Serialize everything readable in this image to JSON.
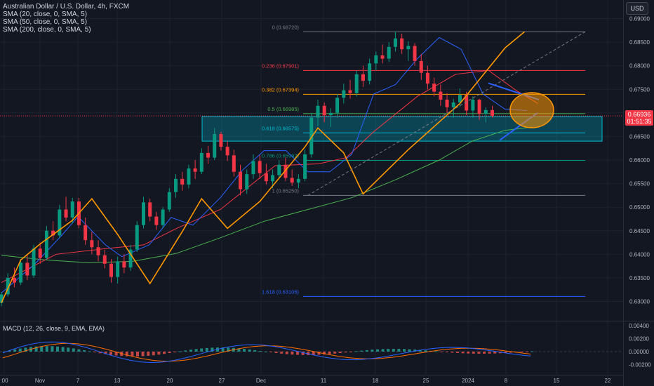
{
  "header": {
    "symbol_title": "Australian Dollar / U.S. Dollar, 4h, FXCM",
    "indicators": [
      "SMA (20, close, 0, SMA, 5)",
      "SMA (50, close, 0, SMA, 5)",
      "SMA (200, close, 0, SMA, 5)"
    ],
    "currency_button": "USD"
  },
  "macd_panel": {
    "label": "MACD (12, 26, close, 9, EMA, EMA)",
    "y_ticks": [
      "0.00400",
      "0.00200",
      "0.00000",
      "-0.00200"
    ],
    "y_values": [
      0.004,
      0.002,
      0.0,
      -0.002
    ]
  },
  "price_badge": {
    "price": "0.66936",
    "countdown": "01:51:35",
    "color": "#f23645"
  },
  "colors": {
    "background": "#131722",
    "sma20": "#2962ff",
    "sma50": "#f23645",
    "sma200": "#4caf50",
    "zigzag": "#ff9800",
    "zone_fill": "#00bcd4",
    "macd_line": "#2962ff",
    "signal_line": "#ff6d00"
  },
  "fib_levels": [
    {
      "label": "0 (0.68720)",
      "value": 0.6872,
      "color": "#787b86"
    },
    {
      "label": "0.236 (0.67901)",
      "value": 0.67901,
      "color": "#f23645"
    },
    {
      "label": "0.382 (0.67394)",
      "value": 0.67394,
      "color": "#ff9800"
    },
    {
      "label": "0.5 (0.66985)",
      "value": 0.66985,
      "color": "#4caf50"
    },
    {
      "label": "0.618 (0.66575)",
      "value": 0.66575,
      "color": "#00bcd4"
    },
    {
      "label": "0.786 (0.65992)",
      "value": 0.65992,
      "color": "#089981"
    },
    {
      "label": "1 (0.65250)",
      "value": 0.6525,
      "color": "#787b86"
    },
    {
      "label": "1.618 (0.63106)",
      "value": 0.63106,
      "color": "#2962ff"
    }
  ],
  "chart_data": {
    "type": "candlestick",
    "title": "Australian Dollar / U.S. Dollar, 4h, FXCM",
    "x_ticks": [
      ":00",
      "Nov",
      "7",
      "13",
      "20",
      "27",
      "Dec",
      "11",
      "18",
      "25",
      "2024",
      "8",
      "15",
      "22"
    ],
    "y_ticks": [
      "0.63000",
      "0.63500",
      "0.64000",
      "0.64500",
      "0.65000",
      "0.65500",
      "0.66000",
      "0.66500",
      "0.67000",
      "0.67500",
      "0.68000",
      "0.68500",
      "0.69000"
    ],
    "y_values": [
      0.63,
      0.635,
      0.64,
      0.645,
      0.65,
      0.655,
      0.66,
      0.665,
      0.67,
      0.675,
      0.68,
      0.685,
      0.69
    ],
    "ylim": [
      0.6275,
      0.6915
    ],
    "last_price": 0.66936,
    "zigzag": [
      [
        0,
        0.6297
      ],
      [
        3,
        0.6388
      ],
      [
        6,
        0.6422
      ],
      [
        11,
        0.6472
      ],
      [
        14,
        0.6518
      ],
      [
        18,
        0.6442
      ],
      [
        23,
        0.6338
      ],
      [
        28,
        0.6448
      ],
      [
        31,
        0.6518
      ],
      [
        35,
        0.6455
      ],
      [
        40,
        0.6512
      ],
      [
        47,
        0.6628
      ],
      [
        49,
        0.6668
      ],
      [
        53,
        0.6615
      ],
      [
        56,
        0.6528
      ],
      [
        63,
        0.6622
      ],
      [
        71,
        0.672
      ],
      [
        78,
        0.6838
      ],
      [
        81,
        0.6872
      ]
    ],
    "sma20": [
      [
        0,
        0.6318
      ],
      [
        6,
        0.6378
      ],
      [
        11,
        0.644
      ],
      [
        14,
        0.648
      ],
      [
        19,
        0.642
      ],
      [
        22,
        0.6395
      ],
      [
        27,
        0.642
      ],
      [
        31,
        0.6478
      ],
      [
        35,
        0.6462
      ],
      [
        40,
        0.652
      ],
      [
        44,
        0.6578
      ],
      [
        48,
        0.662
      ],
      [
        52,
        0.662
      ],
      [
        56,
        0.6575
      ],
      [
        60,
        0.6575
      ],
      [
        64,
        0.6612
      ],
      [
        68,
        0.674
      ],
      [
        72,
        0.676
      ],
      [
        76,
        0.6815
      ],
      [
        80,
        0.686
      ],
      [
        84,
        0.6835
      ],
      [
        88,
        0.674
      ],
      [
        92,
        0.6708
      ],
      [
        96,
        0.6705
      ]
    ],
    "sma50": [
      [
        0,
        0.634
      ],
      [
        10,
        0.64
      ],
      [
        19,
        0.6412
      ],
      [
        26,
        0.642
      ],
      [
        32,
        0.6455
      ],
      [
        40,
        0.6495
      ],
      [
        50,
        0.6588
      ],
      [
        58,
        0.6592
      ],
      [
        63,
        0.6605
      ],
      [
        68,
        0.666
      ],
      [
        76,
        0.6735
      ],
      [
        83,
        0.6782
      ],
      [
        89,
        0.679
      ],
      [
        94,
        0.6748
      ],
      [
        98,
        0.672
      ]
    ],
    "sma200": [
      [
        0,
        0.6398
      ],
      [
        8,
        0.6388
      ],
      [
        16,
        0.6382
      ],
      [
        24,
        0.6385
      ],
      [
        32,
        0.6402
      ],
      [
        40,
        0.6435
      ],
      [
        48,
        0.647
      ],
      [
        56,
        0.6495
      ],
      [
        64,
        0.652
      ],
      [
        72,
        0.6558
      ],
      [
        80,
        0.66
      ],
      [
        86,
        0.664
      ],
      [
        92,
        0.6663
      ],
      [
        97,
        0.667
      ]
    ],
    "zone": {
      "low": 0.664,
      "high": 0.6692
    },
    "triangle_upper": [
      [
        88,
        0.6763
      ],
      [
        95,
        0.6728
      ]
    ],
    "triangle_lower": [
      [
        89,
        0.6642
      ],
      [
        96,
        0.67
      ]
    ],
    "ray": [
      [
        56,
        0.6525
      ],
      [
        104,
        0.6872
      ]
    ],
    "circle_center": [
      95,
      0.67
    ],
    "candles": [
      [
        0.6297,
        0.632,
        0.629,
        0.6315
      ],
      [
        0.6315,
        0.636,
        0.631,
        0.635
      ],
      [
        0.635,
        0.6372,
        0.633,
        0.634
      ],
      [
        0.634,
        0.639,
        0.6335,
        0.6382
      ],
      [
        0.6382,
        0.6398,
        0.6345,
        0.6355
      ],
      [
        0.6355,
        0.642,
        0.635,
        0.6412
      ],
      [
        0.6412,
        0.6425,
        0.638,
        0.6392
      ],
      [
        0.6392,
        0.646,
        0.6388,
        0.645
      ],
      [
        0.645,
        0.647,
        0.643,
        0.644
      ],
      [
        0.644,
        0.6505,
        0.6435,
        0.6495
      ],
      [
        0.6495,
        0.6522,
        0.647,
        0.6478
      ],
      [
        0.6478,
        0.652,
        0.6465,
        0.6512
      ],
      [
        0.6512,
        0.652,
        0.6455,
        0.6462
      ],
      [
        0.6462,
        0.6478,
        0.642,
        0.643
      ],
      [
        0.643,
        0.6448,
        0.64,
        0.6415
      ],
      [
        0.6415,
        0.643,
        0.6385,
        0.6398
      ],
      [
        0.6398,
        0.641,
        0.637,
        0.638
      ],
      [
        0.638,
        0.639,
        0.634,
        0.6352
      ],
      [
        0.6352,
        0.6395,
        0.6338,
        0.6385
      ],
      [
        0.6385,
        0.64,
        0.636,
        0.6372
      ],
      [
        0.6372,
        0.642,
        0.6365,
        0.641
      ],
      [
        0.641,
        0.647,
        0.6405,
        0.6462
      ],
      [
        0.6462,
        0.6522,
        0.6455,
        0.651
      ],
      [
        0.651,
        0.6518,
        0.647,
        0.648
      ],
      [
        0.648,
        0.649,
        0.6452,
        0.6462
      ],
      [
        0.6462,
        0.65,
        0.6455,
        0.6495
      ],
      [
        0.6495,
        0.654,
        0.649,
        0.6532
      ],
      [
        0.6532,
        0.657,
        0.652,
        0.656
      ],
      [
        0.656,
        0.6575,
        0.6535,
        0.6548
      ],
      [
        0.6548,
        0.659,
        0.654,
        0.6582
      ],
      [
        0.6582,
        0.66,
        0.656,
        0.6575
      ],
      [
        0.6575,
        0.6625,
        0.657,
        0.6615
      ],
      [
        0.6615,
        0.663,
        0.6592,
        0.6605
      ],
      [
        0.6605,
        0.6668,
        0.66,
        0.6655
      ],
      [
        0.6655,
        0.666,
        0.662,
        0.6628
      ],
      [
        0.6628,
        0.664,
        0.6598,
        0.661
      ],
      [
        0.661,
        0.6622,
        0.6565,
        0.6575
      ],
      [
        0.6575,
        0.659,
        0.6525,
        0.6538
      ],
      [
        0.6538,
        0.658,
        0.6528,
        0.657
      ],
      [
        0.657,
        0.6612,
        0.656,
        0.6598
      ],
      [
        0.6598,
        0.661,
        0.656,
        0.6572
      ],
      [
        0.6572,
        0.6592,
        0.6548,
        0.6555
      ],
      [
        0.6555,
        0.658,
        0.654,
        0.6568
      ],
      [
        0.6568,
        0.66,
        0.656,
        0.659
      ],
      [
        0.659,
        0.6605,
        0.6555,
        0.6562
      ],
      [
        0.6562,
        0.658,
        0.6545,
        0.6552
      ],
      [
        0.6552,
        0.657,
        0.654,
        0.656
      ],
      [
        0.656,
        0.6622,
        0.6555,
        0.6612
      ],
      [
        0.6612,
        0.67,
        0.6605,
        0.669
      ],
      [
        0.669,
        0.6728,
        0.6672,
        0.6715
      ],
      [
        0.6715,
        0.6722,
        0.668,
        0.6695
      ],
      [
        0.6695,
        0.671,
        0.667,
        0.67
      ],
      [
        0.67,
        0.674,
        0.669,
        0.6732
      ],
      [
        0.6732,
        0.6762,
        0.672,
        0.6748
      ],
      [
        0.6748,
        0.677,
        0.673,
        0.6742
      ],
      [
        0.6742,
        0.679,
        0.6735,
        0.6782
      ],
      [
        0.6782,
        0.68,
        0.6755,
        0.6768
      ],
      [
        0.6768,
        0.6815,
        0.676,
        0.6805
      ],
      [
        0.6805,
        0.683,
        0.679,
        0.6822
      ],
      [
        0.6822,
        0.6845,
        0.6805,
        0.6815
      ],
      [
        0.6815,
        0.685,
        0.6808,
        0.684
      ],
      [
        0.684,
        0.6872,
        0.683,
        0.6858
      ],
      [
        0.6858,
        0.6868,
        0.6825,
        0.6835
      ],
      [
        0.6835,
        0.6852,
        0.681,
        0.6842
      ],
      [
        0.6842,
        0.6848,
        0.68,
        0.681
      ],
      [
        0.681,
        0.6825,
        0.677,
        0.6785
      ],
      [
        0.6785,
        0.68,
        0.675,
        0.6762
      ],
      [
        0.6762,
        0.6775,
        0.6735,
        0.6745
      ],
      [
        0.6745,
        0.676,
        0.6715,
        0.6728
      ],
      [
        0.6728,
        0.6742,
        0.67,
        0.6712
      ],
      [
        0.6712,
        0.673,
        0.669,
        0.6722
      ],
      [
        0.6722,
        0.6752,
        0.6712,
        0.6738
      ],
      [
        0.6738,
        0.6745,
        0.6695,
        0.6705
      ],
      [
        0.6705,
        0.6735,
        0.669,
        0.6728
      ],
      [
        0.6728,
        0.673,
        0.6685,
        0.6698
      ],
      [
        0.6698,
        0.6712,
        0.668,
        0.6706
      ],
      [
        0.6706,
        0.6715,
        0.669,
        0.6694
      ]
    ]
  }
}
